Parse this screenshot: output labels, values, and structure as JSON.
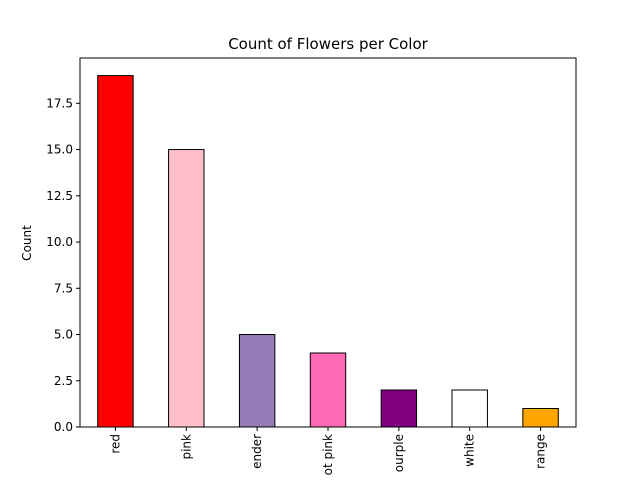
{
  "chart_data": {
    "type": "bar",
    "title": "Count of Flowers per Color",
    "xlabel": "",
    "ylabel": "Count",
    "categories": [
      "red",
      "pink",
      "lavender",
      "hot pink",
      "purple",
      "white",
      "orange"
    ],
    "category_labels_visible": [
      "red",
      "pink",
      "ender",
      "ot pink",
      "ourple",
      "white",
      "range"
    ],
    "values": [
      19,
      15,
      5,
      4,
      2,
      2,
      1
    ],
    "bar_colors": [
      "#ff0000",
      "#ffc0cb",
      "#967bb6",
      "#ff69b4",
      "#800080",
      "#ffffff",
      "#ffa500"
    ],
    "edge_color": "#000000",
    "ylim": [
      0,
      19.95
    ],
    "yticks": [
      0.0,
      2.5,
      5.0,
      7.5,
      10.0,
      12.5,
      15.0,
      17.5
    ],
    "ytick_labels": [
      "0.0",
      "2.5",
      "5.0",
      "7.5",
      "10.0",
      "12.5",
      "15.0",
      "17.5"
    ],
    "grid": false,
    "legend": "none"
  }
}
